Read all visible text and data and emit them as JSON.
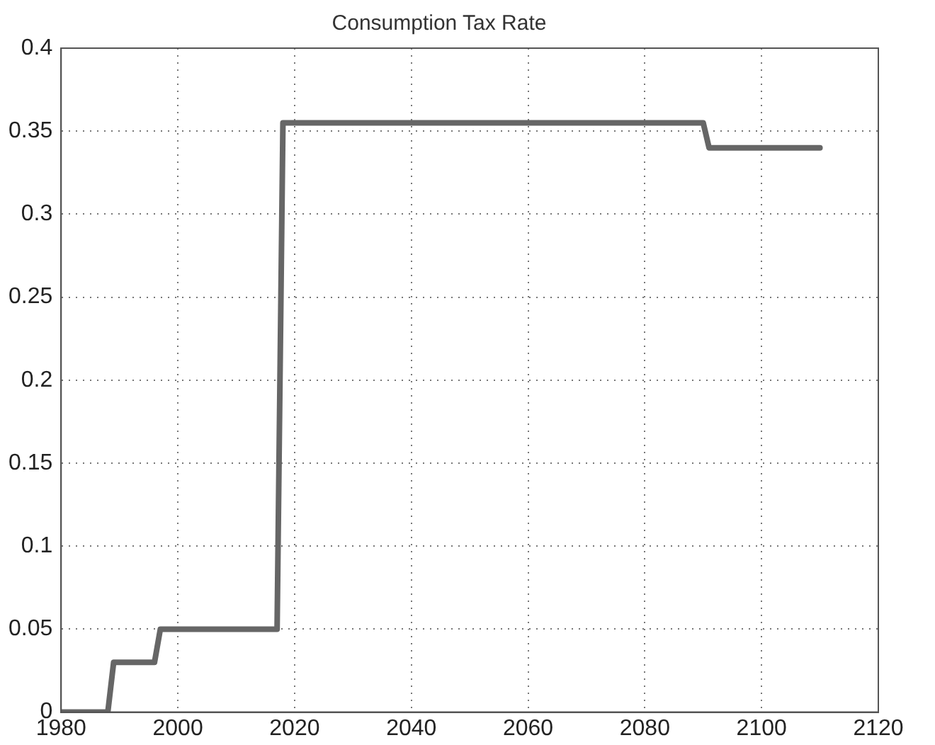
{
  "chart_data": {
    "type": "line",
    "title": "Consumption Tax Rate",
    "x": [
      1980,
      1988,
      1989,
      1996,
      1997,
      2017,
      2018,
      2090,
      2091,
      2110
    ],
    "series": [
      {
        "color": "#666666",
        "values": [
          0,
          0,
          0.03,
          0.03,
          0.05,
          0.05,
          0.355,
          0.355,
          0.34,
          0.34
        ]
      }
    ],
    "xlim": [
      1980,
      2120
    ],
    "xticks": [
      1980,
      2000,
      2020,
      2040,
      2060,
      2080,
      2100,
      2120
    ],
    "ylim": [
      0,
      0.4
    ],
    "yticks": [
      0,
      0.05,
      0.1,
      0.15,
      0.2,
      0.25,
      0.3,
      0.35,
      0.4
    ],
    "grid": true,
    "legend": false,
    "marker": "none",
    "line_style": "solid"
  }
}
